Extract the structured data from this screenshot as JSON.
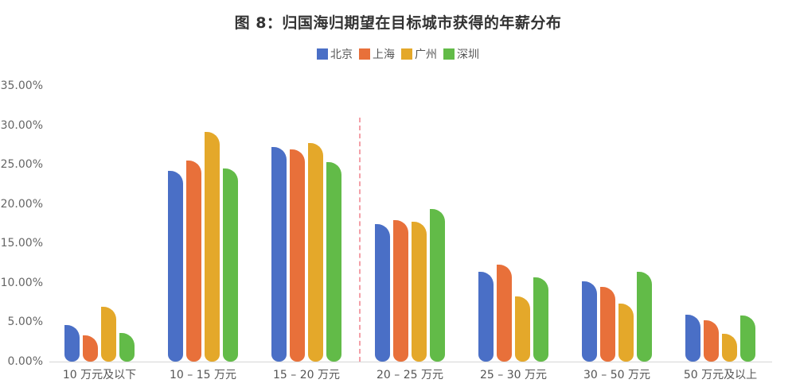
{
  "chart_data": {
    "type": "bar",
    "title": "图 8：归国海归期望在目标城市获得的年薪分布",
    "xlabel": "",
    "ylabel": "",
    "ylim": [
      0,
      35
    ],
    "y_ticks": [
      "0.00%",
      "5.00%",
      "10.00%",
      "15.00%",
      "20.00%",
      "25.00%",
      "30.00%",
      "35.00%"
    ],
    "grid": false,
    "legend_position": "top",
    "categories": [
      "10 万元及以下",
      "10 – 15 万元",
      "15 – 20 万元",
      "20 – 25 万元",
      "25 – 30 万元",
      "30 – 50 万元",
      "50 万元及以上"
    ],
    "series": [
      {
        "name": "北京",
        "color": "#4a6fc6",
        "values": [
          4.6,
          24.2,
          27.2,
          17.4,
          11.4,
          10.2,
          6.0
        ]
      },
      {
        "name": "上海",
        "color": "#e8703a",
        "values": [
          3.3,
          25.5,
          26.9,
          18.0,
          12.3,
          9.5,
          5.2
        ]
      },
      {
        "name": "广州",
        "color": "#e4a82a",
        "values": [
          7.0,
          29.1,
          27.7,
          17.8,
          8.3,
          7.4,
          3.5
        ]
      },
      {
        "name": "深圳",
        "color": "#62bb48",
        "values": [
          3.6,
          24.5,
          25.3,
          19.4,
          10.7,
          11.4,
          5.9
        ]
      }
    ],
    "annotations": [
      {
        "type": "vertical-dashed-line",
        "position": "between 15–20 万元 and 20–25 万元",
        "color": "#f3a0a8"
      }
    ]
  }
}
